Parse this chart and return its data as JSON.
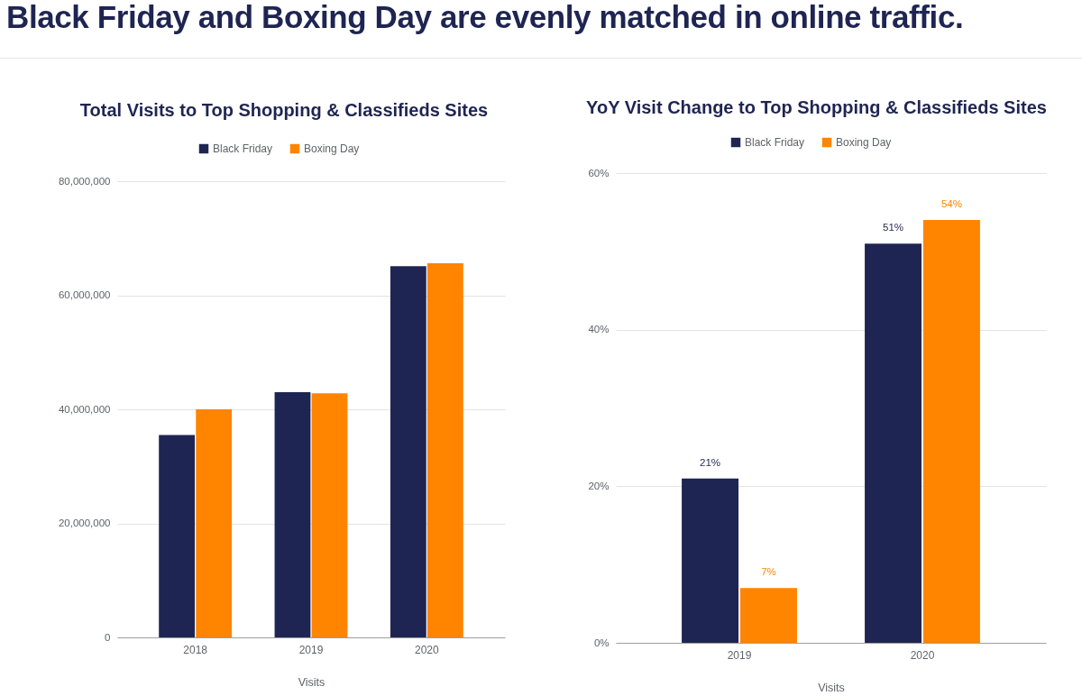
{
  "chart_data": [
    {
      "type": "other",
      "title": "Black Friday and Boxing Day are evenly matched in online traffic."
    },
    {
      "type": "bar",
      "title": "Total Visits to Top Shopping & Classifieds Sites",
      "xlabel": "Visits",
      "categories": [
        "2018",
        "2019",
        "2020"
      ],
      "series": [
        {
          "name": "Black Friday",
          "color": "#1f2552",
          "values": [
            35500000,
            43000000,
            65100000
          ]
        },
        {
          "name": "Boxing Day",
          "color": "#ff8400",
          "values": [
            40000000,
            42800000,
            65600000
          ]
        }
      ],
      "ylim": [
        0,
        80000000
      ],
      "yticks": [
        0,
        {
          "value": 20000000,
          "label": "20,000,000"
        },
        {
          "value": 40000000,
          "label": "40,000,000"
        },
        {
          "value": 60000000,
          "label": "60,000,000"
        },
        {
          "value": 80000000,
          "label": "80,000,000"
        }
      ],
      "grid": "y",
      "legend": "top"
    },
    {
      "type": "bar",
      "title": "YoY Visit Change to Top Shopping & Classifieds Sites",
      "xlabel": "Visits",
      "categories": [
        "2019",
        "2020"
      ],
      "series": [
        {
          "name": "Black Friday",
          "color": "#1f2552",
          "values": [
            21,
            51
          ],
          "value_labels": [
            "21%",
            "51%"
          ]
        },
        {
          "name": "Boxing Day",
          "color": "#ff8400",
          "values": [
            7,
            54
          ],
          "value_labels": [
            "7%",
            "54%"
          ]
        }
      ],
      "ylim": [
        0,
        60
      ],
      "yticks": [
        {
          "value": 0,
          "label": "0%"
        },
        {
          "value": 20,
          "label": "20%"
        },
        {
          "value": 40,
          "label": "40%"
        },
        {
          "value": 60,
          "label": "60%"
        }
      ],
      "grid": "y",
      "legend": "top"
    }
  ]
}
